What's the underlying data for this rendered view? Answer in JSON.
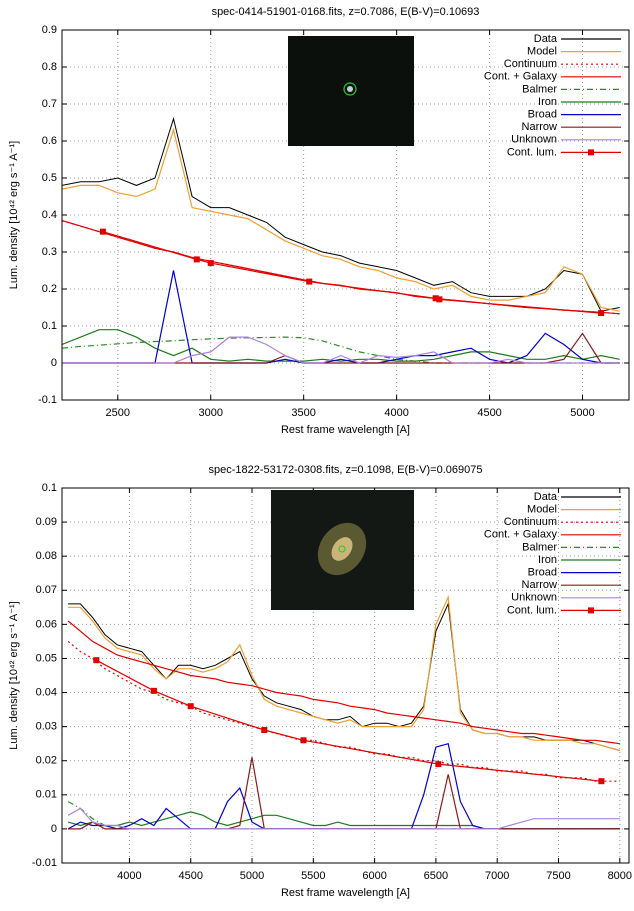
{
  "chart_data": [
    {
      "type": "line",
      "title": "spec-0414-51901-0168.fits, z=0.7086, E(B-V)=0.10693",
      "xlabel": "Rest frame wavelength [A]",
      "ylabel": "Lum. density [10⁴² erg s⁻¹ A⁻¹]",
      "xlim": [
        2200,
        5250
      ],
      "ylim": [
        -0.1,
        0.9
      ],
      "xticks": [
        2500,
        3000,
        3500,
        4000,
        4500,
        5000
      ],
      "yticks": [
        -0.1,
        0,
        0.1,
        0.2,
        0.3,
        0.4,
        0.5,
        0.6,
        0.7,
        0.8,
        0.9
      ],
      "grid": true,
      "legend": "upper right",
      "x": [
        2200,
        2300,
        2400,
        2500,
        2600,
        2700,
        2800,
        2900,
        3000,
        3100,
        3200,
        3300,
        3400,
        3500,
        3600,
        3700,
        3800,
        3900,
        4000,
        4100,
        4200,
        4300,
        4400,
        4500,
        4600,
        4700,
        4800,
        4900,
        5000,
        5100,
        5200
      ],
      "series": [
        {
          "name": "Data",
          "color": "#000000",
          "values": [
            0.48,
            0.49,
            0.49,
            0.5,
            0.48,
            0.5,
            0.66,
            0.45,
            0.42,
            0.42,
            0.4,
            0.38,
            0.34,
            0.32,
            0.3,
            0.29,
            0.27,
            0.26,
            0.25,
            0.23,
            0.21,
            0.22,
            0.19,
            0.18,
            0.18,
            0.18,
            0.2,
            0.25,
            0.24,
            0.14,
            0.15
          ]
        },
        {
          "name": "Model",
          "color": "#f0a030",
          "values": [
            0.47,
            0.48,
            0.48,
            0.46,
            0.45,
            0.47,
            0.63,
            0.42,
            0.41,
            0.4,
            0.39,
            0.36,
            0.33,
            0.31,
            0.29,
            0.28,
            0.26,
            0.25,
            0.23,
            0.22,
            0.2,
            0.21,
            0.18,
            0.17,
            0.17,
            0.18,
            0.19,
            0.26,
            0.24,
            0.15,
            0.14
          ]
        },
        {
          "name": "Continuum",
          "color": "#e00000",
          "line_style": "dotted",
          "values": [
            0.385,
            0.37,
            0.355,
            0.34,
            0.325,
            0.31,
            0.3,
            0.285,
            0.275,
            0.265,
            0.255,
            0.245,
            0.235,
            0.225,
            0.215,
            0.21,
            0.2,
            0.195,
            0.19,
            0.18,
            0.175,
            0.17,
            0.165,
            0.16,
            0.155,
            0.15,
            0.147,
            0.143,
            0.14,
            0.137,
            0.133
          ]
        },
        {
          "name": "Cont. + Galaxy",
          "color": "#e00000",
          "values": [
            0.385,
            0.37,
            0.355,
            0.34,
            0.325,
            0.31,
            0.3,
            0.285,
            0.275,
            0.265,
            0.255,
            0.245,
            0.235,
            0.225,
            0.215,
            0.21,
            0.2,
            0.195,
            0.19,
            0.18,
            0.175,
            0.17,
            0.165,
            0.16,
            0.155,
            0.15,
            0.147,
            0.143,
            0.14,
            0.137,
            0.133
          ]
        },
        {
          "name": "Balmer",
          "color": "#2a8a2a",
          "line_style": "dashdot",
          "values": [
            0.04,
            0.045,
            0.048,
            0.052,
            0.055,
            0.058,
            0.06,
            0.063,
            0.065,
            0.067,
            0.068,
            0.069,
            0.07,
            0.068,
            0.06,
            0.045,
            0.03,
            0.02,
            0.01,
            0.005,
            0,
            0,
            0,
            0,
            0,
            0,
            0,
            0,
            0,
            0,
            0
          ]
        },
        {
          "name": "Iron",
          "color": "#1f7a1f",
          "values": [
            0.05,
            0.07,
            0.09,
            0.09,
            0.07,
            0.04,
            0.02,
            0.04,
            0.01,
            0.005,
            0.01,
            0.005,
            0.005,
            0.005,
            0.01,
            0.005,
            0.01,
            0.01,
            0.005,
            0.005,
            0.01,
            0.02,
            0.03,
            0.03,
            0.02,
            0.01,
            0.01,
            0.02,
            0.01,
            0.02,
            0.01
          ]
        },
        {
          "name": "Broad",
          "color": "#0000d0",
          "values": [
            0,
            0,
            0,
            0,
            0,
            0,
            0.25,
            0,
            0,
            0,
            0,
            0,
            0.01,
            0,
            0,
            0.01,
            0,
            0,
            0.01,
            0.02,
            0.02,
            0.03,
            0.04,
            0.01,
            0,
            0.02,
            0.08,
            0.05,
            0.01,
            0,
            0
          ]
        },
        {
          "name": "Narrow",
          "color": "#8b1a1a",
          "values": [
            0,
            0,
            0,
            0,
            0,
            0,
            0,
            0,
            0,
            0,
            0,
            0,
            0.02,
            0,
            0,
            0,
            0,
            0,
            0,
            0,
            0,
            0,
            0,
            0,
            0,
            0,
            0,
            0.01,
            0.08,
            0,
            0
          ]
        },
        {
          "name": "Unknown",
          "color": "#b080e0",
          "values": [
            0,
            0,
            0,
            0,
            0,
            0,
            0,
            0.02,
            0.03,
            0.07,
            0.07,
            0.05,
            0.02,
            0,
            0,
            0.02,
            0,
            0.02,
            0.015,
            0.02,
            0.03,
            0,
            0,
            0,
            0.01,
            0,
            0,
            0,
            0,
            0,
            0
          ]
        },
        {
          "name": "Cont. lum.",
          "color": "#e00000",
          "marker": "square",
          "x": [
            2420,
            2925,
            3000,
            3530,
            4210,
            4230,
            5100
          ],
          "values": [
            0.355,
            0.28,
            0.27,
            0.22,
            0.175,
            0.172,
            0.135
          ]
        }
      ]
    },
    {
      "type": "line",
      "title": "spec-1822-53172-0308.fits, z=0.1098, E(B-V)=0.069075",
      "xlabel": "Rest frame wavelength [A]",
      "ylabel": "Lum. density [10⁴² erg s⁻¹ A⁻¹]",
      "xlim": [
        3450,
        8075
      ],
      "ylim": [
        -0.01,
        0.1
      ],
      "xticks": [
        4000,
        4500,
        5000,
        5500,
        6000,
        6500,
        7000,
        7500,
        8000
      ],
      "yticks": [
        -0.01,
        0,
        0.01,
        0.02,
        0.03,
        0.04,
        0.05,
        0.06,
        0.07,
        0.08,
        0.09,
        0.1
      ],
      "grid": true,
      "legend": "upper right",
      "x": [
        3500,
        3600,
        3700,
        3800,
        3900,
        4000,
        4100,
        4200,
        4300,
        4400,
        4500,
        4600,
        4700,
        4800,
        4900,
        5000,
        5100,
        5200,
        5300,
        5400,
        5500,
        5600,
        5700,
        5800,
        5900,
        6000,
        6100,
        6200,
        6300,
        6400,
        6500,
        6600,
        6700,
        6800,
        6900,
        7000,
        7100,
        7200,
        7300,
        7400,
        7500,
        7600,
        7700,
        7800,
        7900,
        8000
      ],
      "series": [
        {
          "name": "Data",
          "color": "#000000",
          "values": [
            0.066,
            0.066,
            0.062,
            0.057,
            0.054,
            0.053,
            0.052,
            0.048,
            0.044,
            0.048,
            0.048,
            0.047,
            0.048,
            0.05,
            0.052,
            0.044,
            0.039,
            0.037,
            0.036,
            0.035,
            0.033,
            0.032,
            0.032,
            0.033,
            0.03,
            0.031,
            0.031,
            0.03,
            0.031,
            0.036,
            0.058,
            0.066,
            0.035,
            0.029,
            0.028,
            0.028,
            0.027,
            0.027,
            0.027,
            0.026,
            0.026,
            0.026,
            0.026,
            0.025,
            0.024,
            0.023
          ]
        },
        {
          "name": "Model",
          "color": "#f0a030",
          "values": [
            0.065,
            0.065,
            0.061,
            0.056,
            0.053,
            0.052,
            0.051,
            0.047,
            0.044,
            0.047,
            0.047,
            0.046,
            0.047,
            0.049,
            0.054,
            0.045,
            0.038,
            0.036,
            0.035,
            0.034,
            0.033,
            0.032,
            0.031,
            0.032,
            0.03,
            0.03,
            0.03,
            0.03,
            0.03,
            0.035,
            0.06,
            0.068,
            0.034,
            0.029,
            0.028,
            0.028,
            0.027,
            0.027,
            0.026,
            0.026,
            0.026,
            0.026,
            0.025,
            0.025,
            0.024,
            0.023
          ]
        },
        {
          "name": "Continuum",
          "color": "#e00000",
          "line_style": "dotted",
          "values": [
            0.055,
            0.052,
            0.05,
            0.047,
            0.045,
            0.043,
            0.041,
            0.04,
            0.038,
            0.037,
            0.036,
            0.034,
            0.033,
            0.032,
            0.031,
            0.03,
            0.029,
            0.028,
            0.027,
            0.026,
            0.026,
            0.025,
            0.024,
            0.024,
            0.023,
            0.022,
            0.022,
            0.021,
            0.021,
            0.02,
            0.02,
            0.019,
            0.019,
            0.018,
            0.018,
            0.017,
            0.017,
            0.017,
            0.016,
            0.016,
            0.015,
            0.015,
            0.015,
            0.014,
            0.014,
            0.014
          ]
        },
        {
          "name": "Cont. + Galaxy",
          "color": "#e00000",
          "values": [
            0.061,
            0.058,
            0.055,
            0.053,
            0.051,
            0.05,
            0.049,
            0.048,
            0.047,
            0.046,
            0.045,
            0.0445,
            0.044,
            0.043,
            0.0425,
            0.042,
            0.041,
            0.04,
            0.0395,
            0.039,
            0.038,
            0.0375,
            0.037,
            0.036,
            0.0355,
            0.035,
            0.034,
            0.0335,
            0.033,
            0.0325,
            0.032,
            0.0315,
            0.031,
            0.03,
            0.0295,
            0.029,
            0.0285,
            0.028,
            0.028,
            0.0275,
            0.027,
            0.0265,
            0.026,
            0.026,
            0.0255,
            0.025
          ]
        },
        {
          "name": "Balmer",
          "color": "#2a8a2a",
          "line_style": "dashdot",
          "values": [
            0.008,
            0.006,
            0.003,
            0.001,
            0,
            0,
            0,
            0,
            0,
            0,
            0,
            0,
            0,
            0,
            0,
            0,
            0,
            0,
            0,
            0,
            0,
            0,
            0,
            0,
            0,
            0,
            0,
            0,
            0,
            0,
            0,
            0,
            0,
            0,
            0,
            0,
            0,
            0,
            0,
            0,
            0,
            0,
            0,
            0,
            0,
            0
          ]
        },
        {
          "name": "Iron",
          "color": "#1f7a1f",
          "values": [
            0.002,
            0.001,
            0.002,
            0.001,
            0.001,
            0.002,
            0.001,
            0.002,
            0.003,
            0.004,
            0.005,
            0.004,
            0.002,
            0.001,
            0.002,
            0.003,
            0.004,
            0.004,
            0.003,
            0.002,
            0.001,
            0.001,
            0.002,
            0.001,
            0.001,
            0.001,
            0.001,
            0.001,
            0.001,
            0.001,
            0.001,
            0.001,
            0.001,
            0.001,
            0,
            0,
            0,
            0,
            0,
            0,
            0,
            0,
            0,
            0,
            0,
            0
          ]
        },
        {
          "name": "Broad",
          "color": "#0000d0",
          "values": [
            0,
            0.002,
            0.001,
            0.001,
            0,
            0.001,
            0.003,
            0.001,
            0.006,
            0.003,
            0,
            0,
            0,
            0.008,
            0.012,
            0.002,
            0,
            0,
            0,
            0,
            0,
            0,
            0,
            0,
            0,
            0,
            0,
            0,
            0,
            0.01,
            0.024,
            0.025,
            0.008,
            0.001,
            0,
            0,
            0,
            0,
            0,
            0,
            0,
            0,
            0,
            0,
            0,
            0
          ]
        },
        {
          "name": "Narrow",
          "color": "#8b1a1a",
          "values": [
            0,
            0,
            0.002,
            0,
            0,
            0,
            0,
            0,
            0,
            0,
            0,
            0,
            0,
            0,
            0.001,
            0.021,
            0,
            0,
            0,
            0,
            0,
            0,
            0,
            0,
            0,
            0,
            0,
            0,
            0,
            0,
            0,
            0.016,
            0,
            0,
            0,
            0,
            0,
            0,
            0,
            0,
            0,
            0,
            0,
            0,
            0,
            0
          ]
        },
        {
          "name": "Unknown",
          "color": "#b080e0",
          "values": [
            0.004,
            0.006,
            0.002,
            0.001,
            0.001,
            0,
            0,
            0,
            0,
            0,
            0,
            0,
            0,
            0,
            0,
            0,
            0,
            0,
            0,
            0,
            0,
            0,
            0,
            0,
            0,
            0,
            0,
            0,
            0,
            0,
            0,
            0,
            0,
            0,
            0,
            0,
            0.001,
            0.002,
            0.003,
            0.003,
            0.003,
            0.003,
            0.003,
            0.003,
            0.003,
            0.003
          ]
        },
        {
          "name": "Cont. lum.",
          "color": "#e00000",
          "marker": "square",
          "x": [
            3730,
            4200,
            4500,
            5100,
            5420,
            6520,
            7850
          ],
          "values": [
            0.0495,
            0.0405,
            0.036,
            0.029,
            0.026,
            0.019,
            0.014
          ]
        }
      ]
    }
  ]
}
